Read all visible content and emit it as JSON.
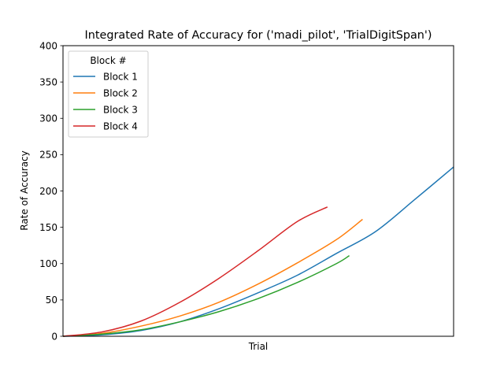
{
  "chart_data": {
    "type": "line",
    "title": "Integrated Rate of Accuracy for ('madi_pilot', 'TrialDigitSpan')",
    "xlabel": "Trial",
    "ylabel": "Rate of Accuracy",
    "ylim": [
      0,
      400
    ],
    "yticks": [
      "0",
      "50",
      "100",
      "150",
      "200",
      "250",
      "300",
      "350",
      "400"
    ],
    "xlim": [
      0,
      100
    ],
    "xticks_shown": false,
    "grid": false,
    "legend": {
      "title": "Block #",
      "placement": "top-left"
    },
    "series": [
      {
        "name": "Block 1",
        "color": "#1f77b4",
        "x": [
          0,
          10,
          20,
          30,
          40,
          50,
          60,
          70,
          80,
          90,
          100
        ],
        "y": [
          0,
          2,
          8,
          20,
          38,
          60,
          84,
          114,
          144,
          188,
          233
        ]
      },
      {
        "name": "Block 2",
        "color": "#ff7f0e",
        "x": [
          0,
          10,
          20,
          30,
          40,
          50,
          60,
          70,
          76.7
        ],
        "y": [
          0,
          4,
          14,
          28,
          47,
          72,
          101,
          133,
          161
        ]
      },
      {
        "name": "Block 3",
        "color": "#2ca02c",
        "x": [
          0,
          10,
          20,
          30,
          40,
          50,
          60,
          70,
          73.3
        ],
        "y": [
          0,
          3,
          9,
          20,
          34,
          52,
          74,
          100,
          111
        ]
      },
      {
        "name": "Block 4",
        "color": "#d62728",
        "x": [
          0,
          10,
          20,
          30,
          40,
          50,
          60,
          67.7
        ],
        "y": [
          0,
          6,
          21,
          47,
          80,
          118,
          158,
          178
        ]
      }
    ]
  }
}
